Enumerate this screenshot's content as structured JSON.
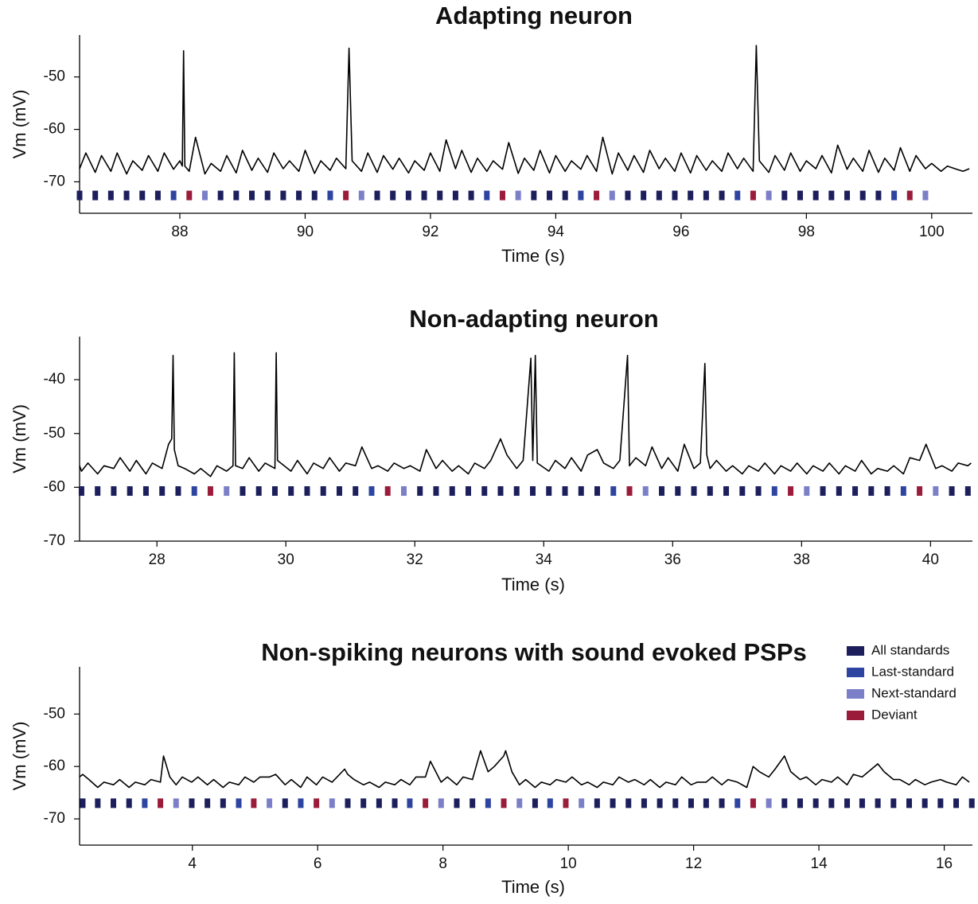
{
  "legend": [
    {
      "name": "All standards",
      "color": "#1c1f5c"
    },
    {
      "name": "Last-standard",
      "color": "#2d45a0"
    },
    {
      "name": "Next-standard",
      "color": "#7b7fc8"
    },
    {
      "name": "Deviant",
      "color": "#9b1c3a"
    }
  ],
  "chart_data": [
    {
      "type": "line",
      "title": "Adapting neuron",
      "x_label": "Time (s)",
      "y_label": "Vm (mV)",
      "color": "#000000",
      "xlim": [
        86.4,
        100.65
      ],
      "ylim": [
        -76,
        -42
      ],
      "xticks": [
        88,
        90,
        92,
        94,
        96,
        98,
        100
      ],
      "yticks": [
        -70,
        -60,
        -50
      ],
      "x": [
        86.4,
        86.5,
        86.65,
        86.75,
        86.9,
        87.0,
        87.15,
        87.25,
        87.4,
        87.5,
        87.65,
        87.75,
        87.9,
        88.0,
        88.04,
        88.06,
        88.08,
        88.15,
        88.25,
        88.4,
        88.5,
        88.65,
        88.75,
        88.9,
        89.0,
        89.15,
        89.25,
        89.4,
        89.5,
        89.65,
        89.75,
        89.9,
        90.0,
        90.15,
        90.25,
        90.4,
        90.5,
        90.65,
        90.7,
        90.75,
        90.9,
        91.0,
        91.15,
        91.25,
        91.4,
        91.5,
        91.65,
        91.75,
        91.9,
        92.0,
        92.15,
        92.25,
        92.4,
        92.5,
        92.65,
        92.75,
        92.9,
        93.0,
        93.15,
        93.25,
        93.4,
        93.5,
        93.65,
        93.75,
        93.9,
        94.0,
        94.15,
        94.25,
        94.4,
        94.5,
        94.65,
        94.75,
        94.9,
        95.0,
        95.15,
        95.25,
        95.4,
        95.5,
        95.65,
        95.75,
        95.9,
        96.0,
        96.15,
        96.25,
        96.4,
        96.5,
        96.65,
        96.75,
        96.9,
        97.0,
        97.15,
        97.2,
        97.25,
        97.4,
        97.5,
        97.65,
        97.75,
        97.9,
        98.0,
        98.15,
        98.25,
        98.4,
        98.5,
        98.65,
        98.75,
        98.9,
        99.0,
        99.15,
        99.25,
        99.4,
        99.5,
        99.65,
        99.75,
        99.9,
        100.0,
        100.15,
        100.25,
        100.4,
        100.5,
        100.6
      ],
      "values": [
        -67.5,
        -64.5,
        -68.2,
        -65,
        -68,
        -64.5,
        -68.5,
        -66,
        -67.8,
        -65,
        -68,
        -64.5,
        -67.6,
        -66,
        -67,
        -45,
        -67,
        -68,
        -61.5,
        -68.5,
        -66.5,
        -68,
        -65,
        -68.3,
        -64,
        -67.8,
        -65.5,
        -68.2,
        -64.5,
        -67.5,
        -66,
        -68,
        -64,
        -68.4,
        -66,
        -67.8,
        -65.5,
        -67.5,
        -44.5,
        -66,
        -68,
        -64.5,
        -68.2,
        -65,
        -67.6,
        -65.5,
        -68.3,
        -66,
        -67.8,
        -64.5,
        -68,
        -62,
        -67.5,
        -64,
        -68.2,
        -65.5,
        -68,
        -66,
        -67.6,
        -62.5,
        -68.4,
        -65.5,
        -67.8,
        -64,
        -68.3,
        -65,
        -68,
        -66,
        -67.6,
        -65,
        -68,
        -61.5,
        -68.5,
        -64.5,
        -67.8,
        -65,
        -68.2,
        -64,
        -67.5,
        -65.5,
        -68,
        -64.5,
        -68.3,
        -65,
        -67.8,
        -66,
        -68,
        -64.5,
        -67.5,
        -65.5,
        -68,
        -44,
        -66,
        -68.2,
        -65,
        -67.8,
        -64.5,
        -68,
        -66,
        -67.5,
        -65,
        -68.3,
        -63,
        -67.6,
        -65.5,
        -68,
        -64,
        -68.2,
        -65.5,
        -67.8,
        -63.5,
        -68,
        -65,
        -67.5,
        -66.5,
        -68,
        -67,
        -67.6,
        -68,
        -67.5
      ],
      "stimuli": [
        [
          86.4,
          86.65,
          86.9,
          87.15,
          87.4,
          87.65,
          88.65,
          88.9,
          89.15,
          89.4,
          89.65,
          89.9,
          90.15,
          91.15,
          91.4,
          91.65,
          91.9,
          92.15,
          92.4,
          92.65,
          93.65,
          93.9,
          94.15,
          95.15,
          95.4,
          95.65,
          95.9,
          96.15,
          96.4,
          96.65,
          97.65,
          97.9,
          98.15,
          98.4,
          98.65,
          98.9,
          99.15
        ],
        [
          87.9,
          90.4,
          92.9,
          94.4,
          96.9,
          99.4
        ],
        [
          88.4,
          90.9,
          93.4,
          94.9,
          97.4,
          99.9
        ],
        [
          88.15,
          90.65,
          93.15,
          94.65,
          97.15,
          99.65
        ]
      ]
    },
    {
      "type": "line",
      "title": "Non-adapting neuron",
      "x_label": "Time (s)",
      "y_label": "Vm (mV)",
      "color": "#000000",
      "xlim": [
        26.8,
        40.65
      ],
      "ylim": [
        -70,
        -32
      ],
      "xticks": [
        28,
        30,
        32,
        34,
        36,
        38,
        40
      ],
      "yticks": [
        -70,
        -60,
        -50,
        -40
      ],
      "x": [
        26.8,
        26.83,
        26.93,
        27.08,
        27.18,
        27.33,
        27.43,
        27.58,
        27.68,
        27.83,
        27.93,
        28.08,
        28.18,
        28.23,
        28.25,
        28.27,
        28.33,
        28.43,
        28.58,
        28.68,
        28.83,
        28.93,
        29.08,
        29.18,
        29.2,
        29.22,
        29.33,
        29.43,
        29.58,
        29.68,
        29.83,
        29.85,
        29.87,
        30.08,
        30.18,
        30.33,
        30.43,
        30.58,
        30.68,
        30.83,
        30.93,
        31.08,
        31.18,
        31.33,
        31.43,
        31.58,
        31.68,
        31.83,
        31.93,
        32.08,
        32.18,
        32.33,
        32.43,
        32.58,
        32.68,
        32.83,
        32.93,
        33.08,
        33.18,
        33.33,
        33.43,
        33.58,
        33.68,
        33.8,
        33.83,
        33.87,
        33.9,
        34.08,
        34.18,
        34.33,
        34.43,
        34.58,
        34.68,
        34.83,
        34.93,
        35.08,
        35.18,
        35.3,
        35.33,
        35.43,
        35.58,
        35.68,
        35.83,
        35.93,
        36.08,
        36.18,
        36.33,
        36.43,
        36.5,
        36.53,
        36.58,
        36.68,
        36.83,
        36.93,
        37.08,
        37.18,
        37.33,
        37.43,
        37.58,
        37.68,
        37.83,
        37.93,
        38.08,
        38.18,
        38.33,
        38.43,
        38.58,
        38.68,
        38.83,
        38.93,
        39.08,
        39.18,
        39.33,
        39.43,
        39.58,
        39.68,
        39.83,
        39.93,
        40.08,
        40.18,
        40.33,
        40.43,
        40.58,
        40.63
      ],
      "values": [
        -56,
        -57,
        -55.5,
        -57.5,
        -56,
        -56.5,
        -54.5,
        -57,
        -55,
        -57.5,
        -55.5,
        -56.5,
        -52,
        -51,
        -35.5,
        -53,
        -56,
        -56.5,
        -57.5,
        -56.5,
        -58,
        -56,
        -57,
        -56,
        -35,
        -56,
        -56.5,
        -54.5,
        -57,
        -55.5,
        -56.5,
        -35,
        -55,
        -57,
        -55,
        -57.5,
        -55.5,
        -56.5,
        -54.5,
        -57,
        -55.5,
        -56,
        -52.5,
        -56.5,
        -56,
        -57,
        -55.5,
        -56.5,
        -56,
        -57,
        -53,
        -56.5,
        -55,
        -57,
        -56,
        -57.5,
        -55.5,
        -56.5,
        -55,
        -51,
        -54,
        -56.5,
        -55,
        -36,
        -55,
        -35.5,
        -55.5,
        -57,
        -55,
        -56.5,
        -54.5,
        -57,
        -54,
        -53,
        -55.5,
        -56.5,
        -55,
        -35.5,
        -56,
        -54.5,
        -56,
        -52.5,
        -56.5,
        -54.5,
        -57,
        -52,
        -56.5,
        -55.5,
        -37,
        -54,
        -56.5,
        -55,
        -57,
        -56,
        -57.5,
        -56,
        -57,
        -55.5,
        -57.5,
        -56,
        -57,
        -55.5,
        -57.5,
        -56,
        -57,
        -55.5,
        -57.5,
        -56,
        -57,
        -55,
        -57.5,
        -56.5,
        -57,
        -56,
        -57.5,
        -54.5,
        -55,
        -52,
        -56.5,
        -56,
        -57,
        -55.5,
        -56,
        -55.5
      ],
      "stimuli": [
        [
          26.83,
          27.08,
          27.33,
          27.58,
          27.83,
          28.08,
          28.33,
          29.33,
          29.58,
          29.83,
          30.08,
          30.33,
          30.58,
          30.83,
          31.08,
          32.08,
          32.33,
          32.58,
          32.83,
          33.08,
          33.33,
          33.58,
          33.83,
          34.08,
          34.33,
          34.58,
          34.83,
          35.83,
          36.08,
          36.33,
          36.58,
          36.83,
          37.08,
          37.33,
          38.33,
          38.58,
          38.83,
          39.08,
          39.33,
          40.33,
          40.58
        ],
        [
          28.58,
          31.33,
          35.08,
          37.58,
          39.58
        ],
        [
          29.08,
          31.83,
          35.58,
          38.08,
          40.08
        ],
        [
          28.83,
          31.58,
          35.33,
          37.83,
          39.83
        ]
      ]
    },
    {
      "type": "line",
      "title": "Non-spiking neurons with sound evoked PSPs",
      "x_label": "Time (s)",
      "y_label": "Vm (mV)",
      "color": "#000000",
      "xlim": [
        2.2,
        16.45
      ],
      "ylim": [
        -75,
        -41
      ],
      "xticks": [
        4,
        6,
        8,
        10,
        12,
        14,
        16
      ],
      "yticks": [
        -70,
        -60,
        -50
      ],
      "x": [
        2.2,
        2.25,
        2.35,
        2.49,
        2.59,
        2.74,
        2.84,
        2.99,
        3.09,
        3.24,
        3.34,
        3.49,
        3.54,
        3.64,
        3.74,
        3.84,
        3.99,
        4.09,
        4.24,
        4.34,
        4.49,
        4.59,
        4.74,
        4.84,
        4.98,
        5.08,
        5.23,
        5.33,
        5.48,
        5.58,
        5.73,
        5.83,
        5.98,
        6.08,
        6.23,
        6.43,
        6.48,
        6.58,
        6.73,
        6.83,
        6.98,
        7.08,
        7.23,
        7.33,
        7.47,
        7.57,
        7.72,
        7.8,
        7.97,
        8.07,
        8.22,
        8.32,
        8.47,
        8.6,
        8.72,
        8.82,
        8.97,
        9.0,
        9.1,
        9.22,
        9.32,
        9.47,
        9.57,
        9.71,
        9.81,
        9.96,
        10.06,
        10.21,
        10.31,
        10.46,
        10.56,
        10.71,
        10.81,
        10.96,
        11.06,
        11.21,
        11.31,
        11.46,
        11.56,
        11.71,
        11.81,
        11.96,
        12.06,
        12.2,
        12.3,
        12.45,
        12.55,
        12.7,
        12.85,
        12.95,
        13.05,
        13.2,
        13.3,
        13.45,
        13.55,
        13.7,
        13.8,
        13.95,
        14.05,
        14.2,
        14.3,
        14.45,
        14.55,
        14.69,
        14.79,
        14.94,
        15.04,
        15.19,
        15.29,
        15.44,
        15.54,
        15.69,
        15.79,
        15.94,
        16.04,
        16.19,
        16.29,
        16.4
      ],
      "values": [
        -62,
        -61.5,
        -62.5,
        -64,
        -63,
        -63.5,
        -62.5,
        -64,
        -63,
        -63.5,
        -62.5,
        -63,
        -58,
        -62,
        -63.5,
        -62,
        -63,
        -62,
        -63.5,
        -62.5,
        -64,
        -63,
        -63.5,
        -62,
        -63,
        -62,
        -62,
        -61.5,
        -63.5,
        -62.5,
        -64,
        -62,
        -63.5,
        -62,
        -63,
        -60.5,
        -61.5,
        -62.5,
        -63.5,
        -63,
        -64,
        -63,
        -63.5,
        -62.5,
        -63.5,
        -62,
        -62,
        -59,
        -63,
        -62,
        -63.5,
        -62,
        -62.5,
        -57,
        -61,
        -60,
        -58,
        -57,
        -61,
        -63.5,
        -62.5,
        -64,
        -63,
        -63.5,
        -62.5,
        -63,
        -62,
        -63.5,
        -63,
        -64,
        -63,
        -63.5,
        -62,
        -63,
        -62.5,
        -63.5,
        -62.5,
        -64,
        -63,
        -63.5,
        -62,
        -63.5,
        -63,
        -63,
        -62,
        -63.5,
        -62.5,
        -63,
        -64,
        -60,
        -61,
        -62,
        -60.5,
        -58,
        -61,
        -62.5,
        -62,
        -63.5,
        -62.5,
        -63,
        -62,
        -63.5,
        -61.5,
        -62,
        -61,
        -59.5,
        -61,
        -62.5,
        -62.5,
        -63.5,
        -62.5,
        -63.5,
        -63,
        -62.5,
        -63,
        -63.5,
        -62,
        -63
      ],
      "stimuli": [
        [
          2.25,
          2.49,
          2.74,
          2.99,
          3.99,
          4.24,
          4.49,
          5.48,
          6.48,
          6.73,
          6.98,
          7.23,
          8.22,
          8.47,
          9.47,
          10.46,
          10.71,
          10.96,
          11.21,
          11.46,
          11.71,
          11.96,
          12.2,
          12.45,
          13.45,
          13.7,
          13.95,
          14.2,
          14.45,
          14.69,
          14.94,
          15.19,
          15.44,
          15.69,
          15.94,
          16.19,
          16.44
        ],
        [
          3.24,
          4.74,
          5.73,
          7.47,
          8.72,
          9.71,
          12.7
        ],
        [
          3.74,
          5.23,
          6.23,
          7.97,
          9.22,
          10.21,
          13.2
        ],
        [
          3.49,
          4.98,
          5.98,
          7.72,
          8.97,
          9.96,
          12.95
        ]
      ]
    }
  ]
}
